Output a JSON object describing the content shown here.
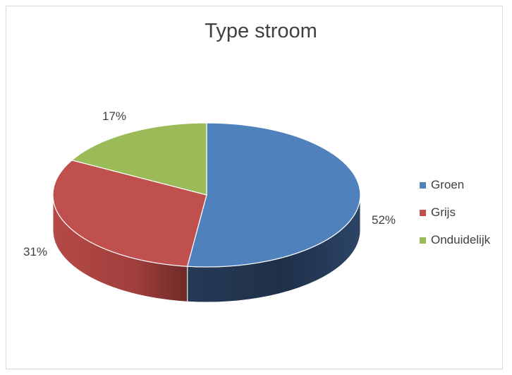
{
  "chart_data": {
    "type": "pie",
    "title": "Type stroom",
    "categories": [
      "Groen",
      "Grijs",
      "Onduidelijk"
    ],
    "values": [
      52,
      31,
      17
    ],
    "labels": [
      "52%",
      "31%",
      "17%"
    ],
    "colors": [
      "#4f81bd",
      "#c0504d",
      "#9bbb59"
    ],
    "three_d": true,
    "legend_position": "right"
  }
}
